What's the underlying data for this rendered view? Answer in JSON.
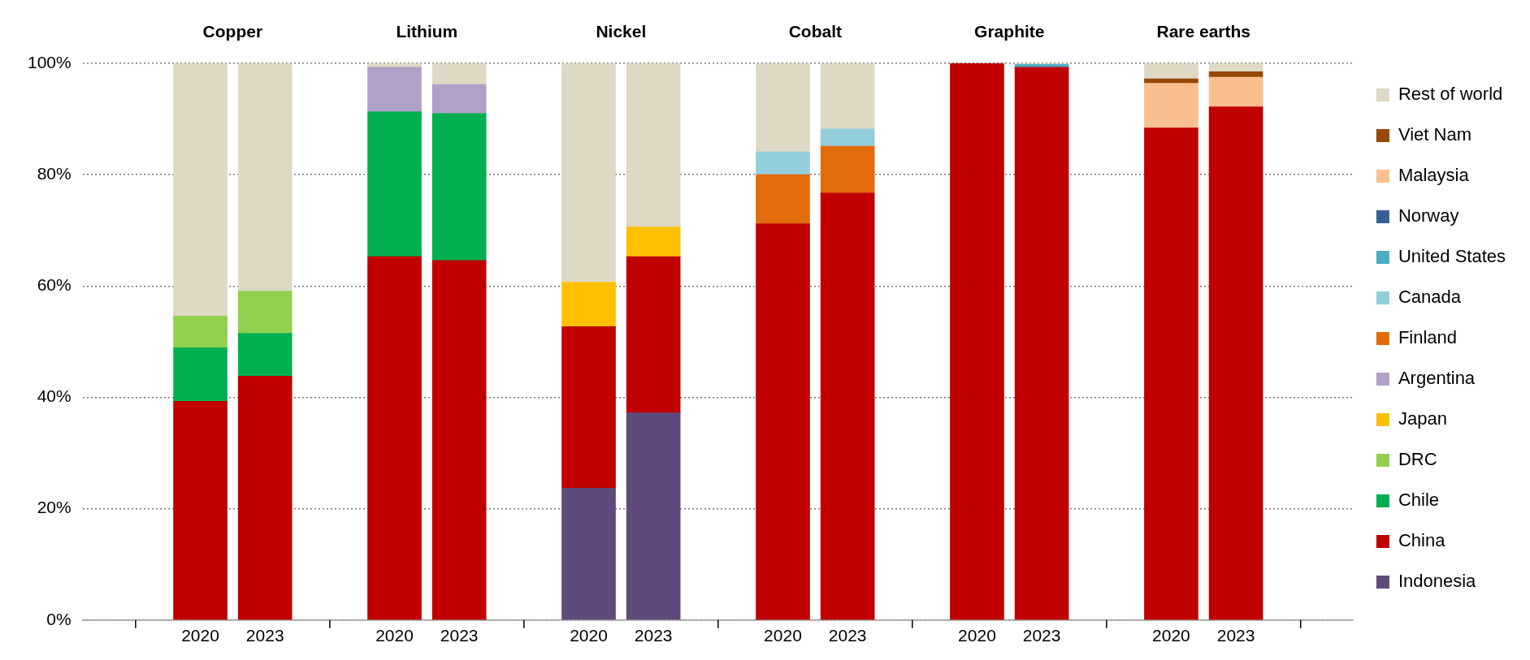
{
  "chart_data": {
    "type": "bar",
    "stacked": true,
    "categories": [
      "2020",
      "2023",
      "2020",
      "2023",
      "2020",
      "2023",
      "2020",
      "2023",
      "2020",
      "2023",
      "2020",
      "2023"
    ],
    "annotations": [
      "Copper",
      "Lithium",
      "Nickel",
      "Cobalt",
      "Graphite",
      "Rare earths"
    ],
    "ylim": [
      0,
      100
    ],
    "yticks": [
      {
        "value": 0,
        "label": "0%"
      },
      {
        "value": 20,
        "label": "20%"
      },
      {
        "value": 40,
        "label": "40%"
      },
      {
        "value": 60,
        "label": "60%"
      },
      {
        "value": 80,
        "label": "80%"
      },
      {
        "value": 100,
        "label": "100%"
      }
    ],
    "grid": "y",
    "legend": "right",
    "series": [
      {
        "name": "Indonesia",
        "color": "#604a7b",
        "values": [
          null,
          null,
          null,
          null,
          23.7,
          37.2,
          null,
          null,
          null,
          null,
          null,
          null
        ]
      },
      {
        "name": "China",
        "color": "#c00000",
        "values": [
          39.3,
          43.8,
          65.3,
          64.6,
          29.0,
          28.1,
          71.2,
          76.7,
          100,
          99.3,
          88.4,
          92.2
        ]
      },
      {
        "name": "Chile",
        "color": "#00b050",
        "values": [
          9.6,
          7.7,
          26.0,
          26.4,
          null,
          null,
          null,
          null,
          null,
          null,
          null,
          null
        ]
      },
      {
        "name": "DRC",
        "color": "#92d050",
        "values": [
          5.7,
          7.6,
          null,
          null,
          null,
          null,
          null,
          null,
          null,
          null,
          null,
          null
        ]
      },
      {
        "name": "Japan",
        "color": "#ffc000",
        "values": [
          null,
          null,
          null,
          null,
          8.0,
          5.3,
          null,
          null,
          null,
          null,
          null,
          null
        ]
      },
      {
        "name": "Argentina",
        "color": "#b1a0c7",
        "values": [
          null,
          null,
          8.0,
          5.2,
          null,
          null,
          null,
          null,
          null,
          null,
          null,
          null
        ]
      },
      {
        "name": "Finland",
        "color": "#e26b0a",
        "values": [
          null,
          null,
          null,
          null,
          null,
          null,
          8.8,
          8.4,
          null,
          null,
          null,
          null
        ]
      },
      {
        "name": "Canada",
        "color": "#92cddc",
        "values": [
          null,
          null,
          null,
          null,
          null,
          null,
          4.1,
          3.1,
          null,
          null,
          null,
          null
        ]
      },
      {
        "name": "United States",
        "color": "#4bacc6",
        "values": [
          null,
          null,
          null,
          null,
          null,
          null,
          null,
          null,
          null,
          0.5,
          null,
          null
        ]
      },
      {
        "name": "Norway",
        "color": "#366092",
        "values": [
          null,
          null,
          null,
          null,
          null,
          null,
          null,
          null,
          null,
          null,
          null,
          null
        ]
      },
      {
        "name": "Malaysia",
        "color": "#fabf8f",
        "values": [
          null,
          null,
          null,
          null,
          null,
          null,
          null,
          null,
          null,
          null,
          8.0,
          5.3
        ]
      },
      {
        "name": "Viet Nam",
        "color": "#974706",
        "values": [
          null,
          null,
          null,
          null,
          null,
          null,
          null,
          null,
          null,
          null,
          0.8,
          1.0
        ]
      },
      {
        "name": "Rest of world",
        "color": "#ddd9c4",
        "values": [
          45.4,
          40.9,
          0.7,
          3.8,
          39.3,
          29.4,
          15.9,
          11.8,
          null,
          0.2,
          2.8,
          1.5
        ]
      }
    ]
  }
}
